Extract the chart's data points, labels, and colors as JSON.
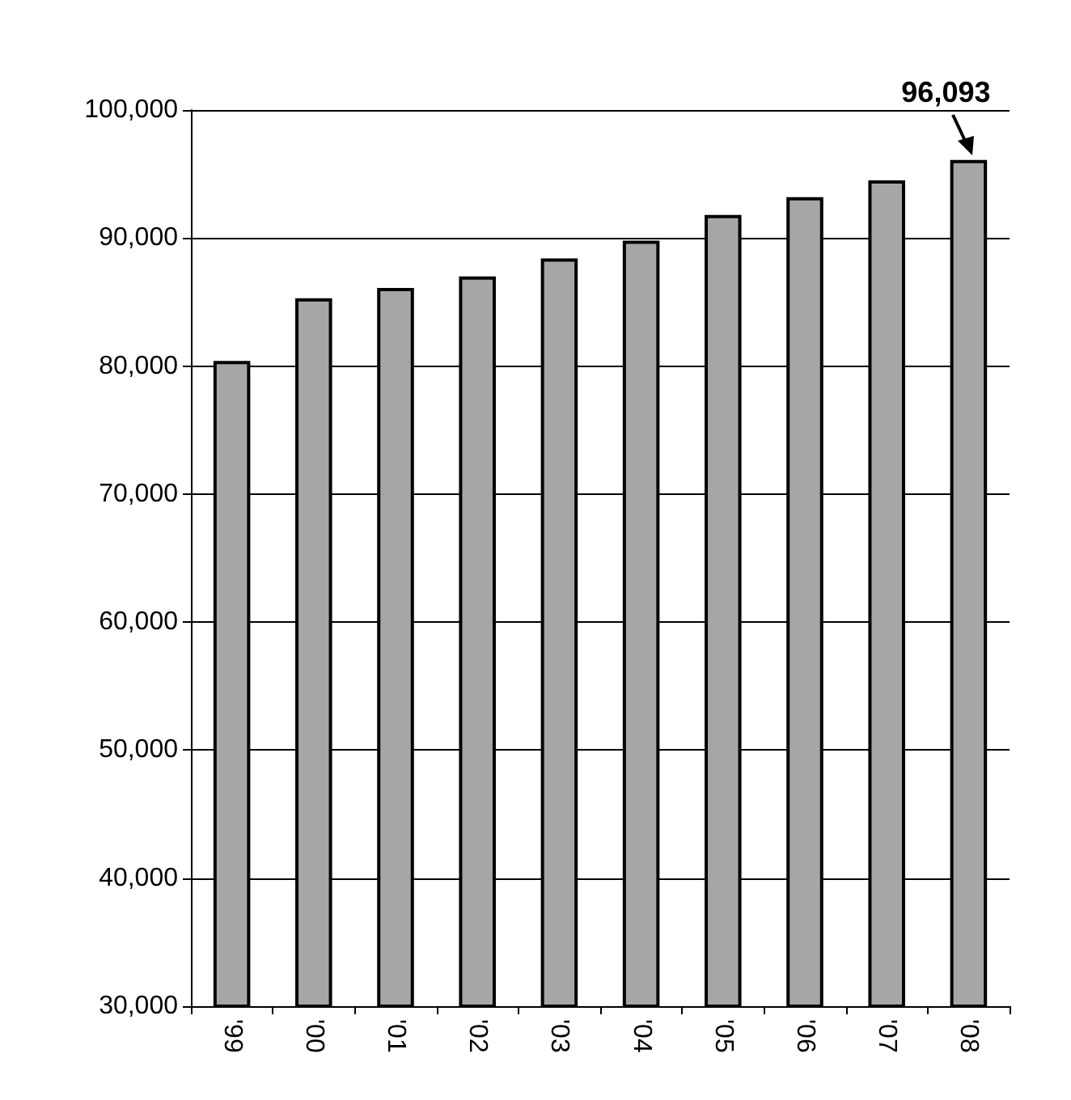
{
  "chart_data": {
    "type": "bar",
    "categories": [
      "'99",
      "'00",
      "'01",
      "'02",
      "'03",
      "'04",
      "'05",
      "'06",
      "'07",
      "'08"
    ],
    "values": [
      80400,
      85300,
      86100,
      87000,
      88400,
      89800,
      91800,
      93200,
      94500,
      96093
    ],
    "color": "#a6a6a6",
    "ylim": [
      30000,
      100000
    ],
    "yticks": [
      {
        "value": 30000,
        "label": "30,000"
      },
      {
        "value": 40000,
        "label": "40,000"
      },
      {
        "value": 50000,
        "label": "50,000"
      },
      {
        "value": 60000,
        "label": "60,000"
      },
      {
        "value": 70000,
        "label": "70,000"
      },
      {
        "value": 80000,
        "label": "80,000"
      },
      {
        "value": 90000,
        "label": "90,000"
      },
      {
        "value": 100000,
        "label": "100,000"
      }
    ],
    "grid": "y",
    "value_labels": [
      null,
      null,
      null,
      null,
      null,
      null,
      null,
      null,
      null,
      "96,093"
    ]
  }
}
